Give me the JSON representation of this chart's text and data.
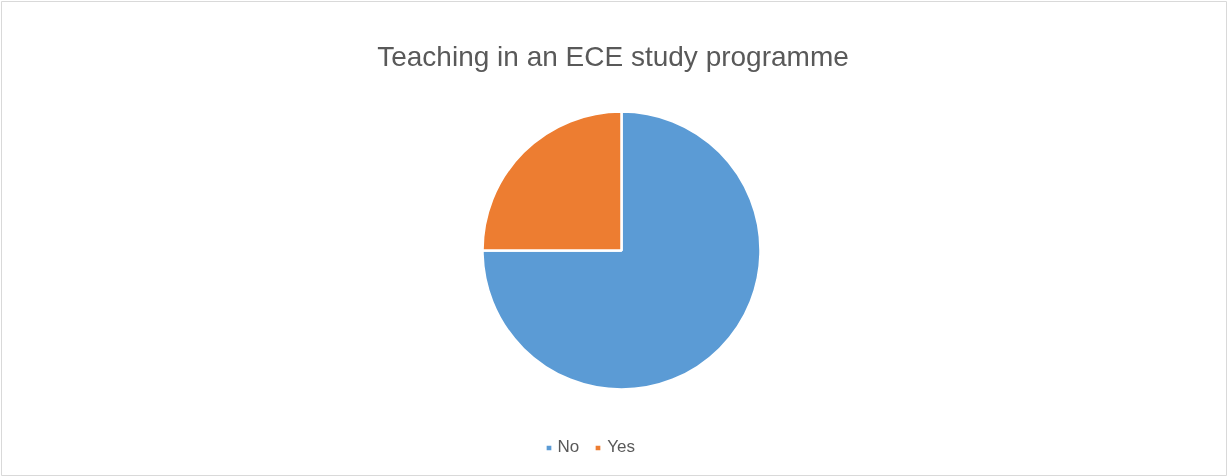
{
  "chart_data": {
    "type": "pie",
    "title": "Teaching in an ECE study programme",
    "categories": [
      "No",
      "Yes"
    ],
    "values": [
      75,
      25
    ],
    "colors": [
      "#5b9bd5",
      "#ed7d31"
    ],
    "legend": "bottom"
  }
}
